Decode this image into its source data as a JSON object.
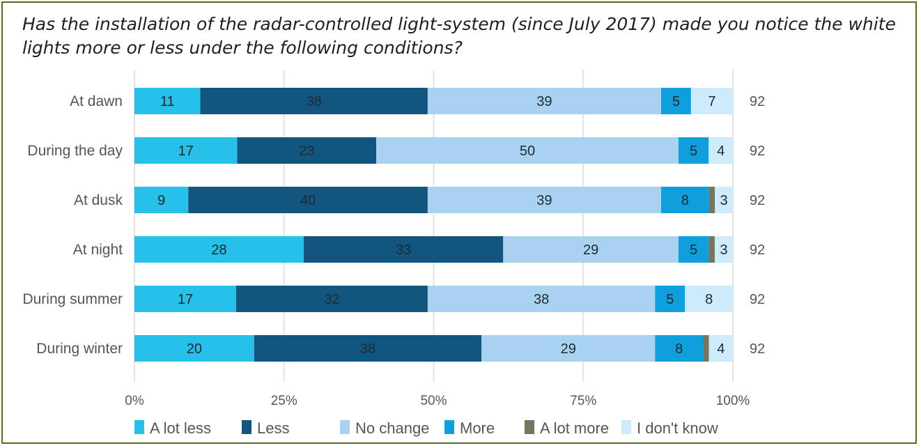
{
  "title": "Has the installation of the radar-controlled light-system (since July 2017) made you notice the white lights more or less under the following conditions?",
  "chart_data": {
    "type": "bar",
    "orientation": "horizontal",
    "stacked": "percent",
    "title": "Has the installation of the radar-controlled light-system (since July 2017) made you notice the white lights more or less under the following conditions?",
    "categories": [
      "At dawn",
      "During the day",
      "At dusk",
      "At night",
      "During summer",
      "During winter"
    ],
    "series": [
      {
        "name": "A lot less",
        "color": "#26c0ea",
        "values": [
          11,
          17,
          9,
          28,
          17,
          20
        ],
        "labels": [
          "11",
          "17",
          "9",
          "28",
          "17",
          "20"
        ]
      },
      {
        "name": "Less",
        "color": "#12557f",
        "values": [
          38,
          23,
          40,
          33,
          32,
          38
        ],
        "labels": [
          "38",
          "23",
          "40",
          "33",
          "32",
          "38"
        ]
      },
      {
        "name": "No change",
        "color": "#a9d2f0",
        "values": [
          39,
          50,
          39,
          29,
          38,
          29
        ],
        "labels": [
          "39",
          "50",
          "39",
          "29",
          "38",
          "29"
        ]
      },
      {
        "name": "More",
        "color": "#0f9fdc",
        "values": [
          5,
          5,
          8,
          5,
          5,
          8
        ],
        "labels": [
          "5",
          "5",
          "8",
          "5",
          "5",
          "8"
        ]
      },
      {
        "name": "A lot more",
        "color": "#75765e",
        "values": [
          0,
          0,
          1,
          1,
          0,
          1
        ],
        "labels": [
          "",
          "",
          "",
          "",
          "",
          ""
        ]
      },
      {
        "name": "I don't know",
        "color": "#cdebfa",
        "values": [
          7,
          4,
          3,
          3,
          8,
          4
        ],
        "labels": [
          "7",
          "4",
          "3",
          "3",
          "8",
          "4"
        ]
      }
    ],
    "n_values": [
      "92",
      "92",
      "92",
      "92",
      "92",
      "92"
    ],
    "x_ticks": [
      "0%",
      "25%",
      "50%",
      "75%",
      "100%"
    ],
    "xlim": [
      0,
      100
    ],
    "grid": true,
    "legend_position": "bottom"
  }
}
